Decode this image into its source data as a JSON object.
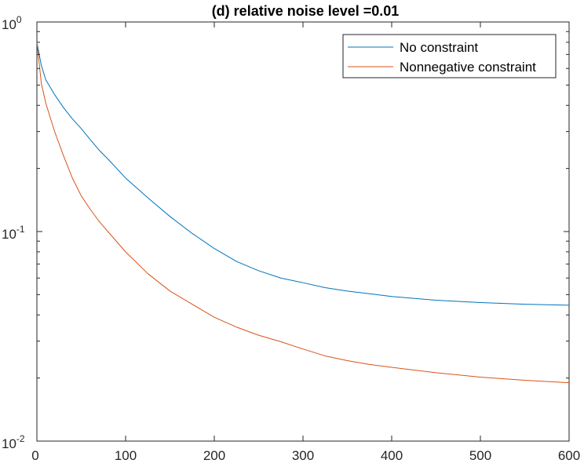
{
  "chart_data": {
    "type": "line",
    "title": "(d) relative noise level =0.01",
    "xlabel": "",
    "ylabel": "",
    "xlim": [
      0,
      600
    ],
    "ylim": [
      0.01,
      1
    ],
    "yscale": "log",
    "xticks": [
      0,
      100,
      200,
      300,
      400,
      500,
      600
    ],
    "xtick_labels": [
      "0",
      "100",
      "200",
      "300",
      "400",
      "500",
      "600"
    ],
    "yticks": [
      0.01,
      0.1,
      1
    ],
    "ytick_labels": [
      {
        "base": "10",
        "exp": "-2"
      },
      {
        "base": "10",
        "exp": "-1"
      },
      {
        "base": "10",
        "exp": "0"
      }
    ],
    "grid": false,
    "legend_position": "top-right",
    "series": [
      {
        "name": "No constraint",
        "color": "#0072BD",
        "x": [
          0,
          5,
          10,
          20,
          30,
          40,
          50,
          60,
          70,
          80,
          100,
          125,
          150,
          175,
          200,
          225,
          250,
          275,
          300,
          325,
          350,
          375,
          400,
          450,
          500,
          550,
          600
        ],
        "y": [
          0.8,
          0.62,
          0.53,
          0.45,
          0.39,
          0.345,
          0.31,
          0.275,
          0.245,
          0.222,
          0.18,
          0.145,
          0.118,
          0.098,
          0.083,
          0.072,
          0.065,
          0.06,
          0.057,
          0.054,
          0.052,
          0.0505,
          0.049,
          0.047,
          0.0458,
          0.045,
          0.0445
        ]
      },
      {
        "name": "Nonnegative constraint",
        "color": "#D95319",
        "x": [
          0,
          5,
          10,
          20,
          30,
          40,
          50,
          60,
          70,
          80,
          100,
          125,
          150,
          175,
          200,
          225,
          250,
          275,
          300,
          325,
          350,
          375,
          400,
          450,
          500,
          550,
          600
        ],
        "y": [
          0.8,
          0.51,
          0.41,
          0.3,
          0.23,
          0.18,
          0.148,
          0.128,
          0.112,
          0.1,
          0.08,
          0.063,
          0.052,
          0.045,
          0.039,
          0.035,
          0.032,
          0.0298,
          0.0275,
          0.0255,
          0.0242,
          0.0232,
          0.0225,
          0.0212,
          0.0202,
          0.0195,
          0.019
        ]
      }
    ]
  }
}
